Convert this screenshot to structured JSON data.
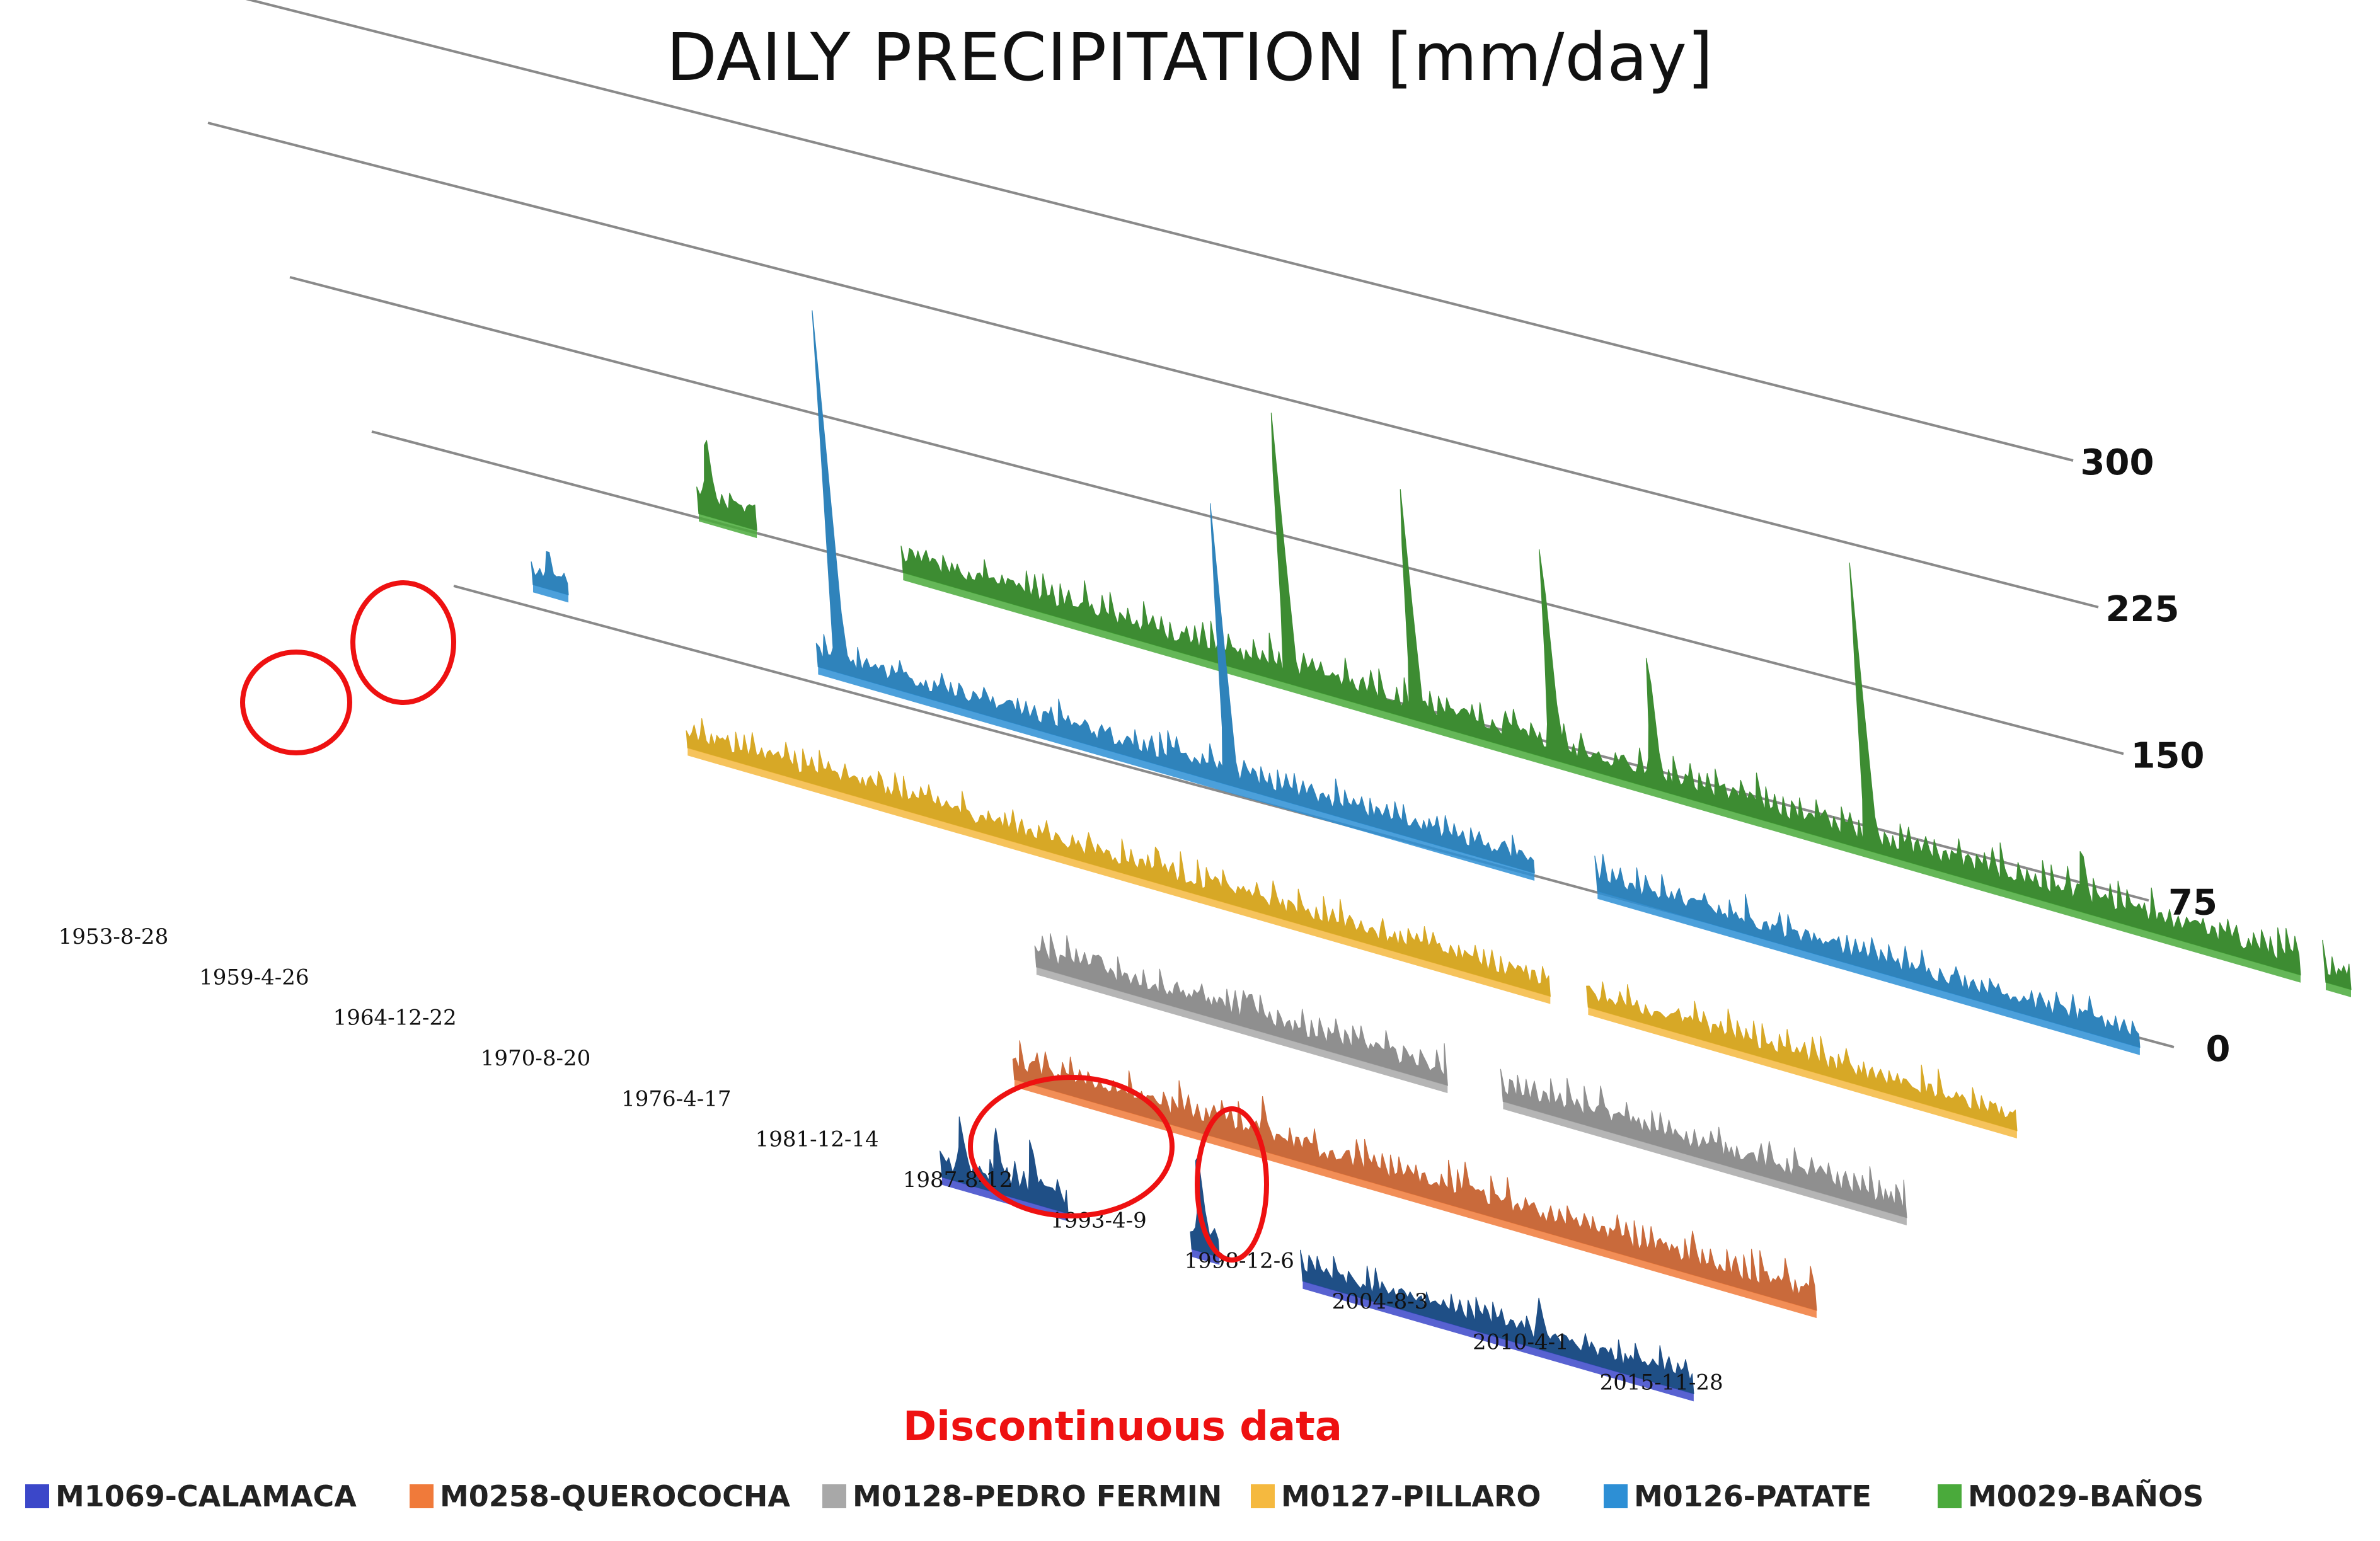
{
  "chart_data": {
    "type": "area",
    "title": "DAILY PRECIPITATION [mm/day]",
    "zlim": [
      0,
      300
    ],
    "z_ticks": [
      "0",
      "75",
      "150",
      "225",
      "300"
    ],
    "x_ticks": [
      "1953-8-28",
      "1959-4-26",
      "1964-12-22",
      "1970-8-20",
      "1976-4-17",
      "1981-12-14",
      "1987-8-12",
      "1993-4-9",
      "1998-12-6",
      "2004-8-3",
      "2010-4-1",
      "2015-11-28"
    ],
    "legend_position": "bottom",
    "annotation": "Discontinuous data",
    "series": [
      {
        "name": "M1069-CALAMACA",
        "color": "#3b47c9",
        "draw_color": "#1f4f86",
        "segments": [
          {
            "start": 1986.5,
            "end": 1991.5
          },
          {
            "start": 1996.4,
            "end": 1997.5
          },
          {
            "start": 2000.8,
            "end": 2016.3
          }
        ],
        "peaks": [
          {
            "x": 1987.4,
            "y": 55
          },
          {
            "x": 1988.8,
            "y": 60
          },
          {
            "x": 1990.2,
            "y": 58
          },
          {
            "x": 1996.9,
            "y": 95
          },
          {
            "x": 2010.3,
            "y": 45
          }
        ],
        "base_level": 14
      },
      {
        "name": "M0258-QUEROCOCHA",
        "color": "#f07a3a",
        "draw_color": "#c96a3b",
        "segments": [
          {
            "start": 1985.0,
            "end": 2016.8
          }
        ],
        "peaks": [
          {
            "x": 1995.0,
            "y": 45
          },
          {
            "x": 2003.0,
            "y": 40
          },
          {
            "x": 2012.0,
            "y": 38
          }
        ],
        "base_level": 15
      },
      {
        "name": "M0128-PEDRO FERMIN",
        "color": "#a8a8a8",
        "draw_color": "#8f8f8f",
        "segments": [
          {
            "start": 1981.5,
            "end": 1997.8
          },
          {
            "start": 2000.0,
            "end": 2016.0
          }
        ],
        "peaks": [
          {
            "x": 1984.0,
            "y": 30
          },
          {
            "x": 1990.0,
            "y": 32
          },
          {
            "x": 2004.0,
            "y": 35
          }
        ],
        "base_level": 14
      },
      {
        "name": "M0127-PILLARO",
        "color": "#f5b93f",
        "draw_color": "#d7a826",
        "segments": [
          {
            "start": 1963.3,
            "end": 1997.5
          },
          {
            "start": 1999.0,
            "end": 2016.0
          }
        ],
        "peaks": [
          {
            "x": 1971.0,
            "y": 30
          },
          {
            "x": 1982.0,
            "y": 35
          },
          {
            "x": 2008.0,
            "y": 28
          }
        ],
        "base_level": 13
      },
      {
        "name": "M0126-PATATE",
        "color": "#2d8fd5",
        "draw_color": "#2f83bb",
        "segments": [
          {
            "start": 1952.8,
            "end": 1954.2
          },
          {
            "start": 1964.1,
            "end": 1992.5
          },
          {
            "start": 1995.0,
            "end": 2016.5
          }
        ],
        "peaks": [
          {
            "x": 1965.0,
            "y": 300
          },
          {
            "x": 1980.5,
            "y": 240
          },
          {
            "x": 1953.5,
            "y": 38
          }
        ],
        "base_level": 13
      },
      {
        "name": "M0029-BAÑOS",
        "color": "#4aaa3b",
        "draw_color": "#3d8c32",
        "segments": [
          {
            "start": 1955.0,
            "end": 1957.3
          },
          {
            "start": 1963.1,
            "end": 2018.5
          },
          {
            "start": 2019.5,
            "end": 2020.5
          }
        ],
        "peaks": [
          {
            "x": 1955.5,
            "y": 75
          },
          {
            "x": 1978.5,
            "y": 245
          },
          {
            "x": 1983.5,
            "y": 205
          },
          {
            "x": 1989.0,
            "y": 190
          },
          {
            "x": 2001.5,
            "y": 240
          },
          {
            "x": 1993.0,
            "y": 120
          },
          {
            "x": 2010.0,
            "y": 60
          }
        ],
        "base_level": 15
      }
    ]
  }
}
